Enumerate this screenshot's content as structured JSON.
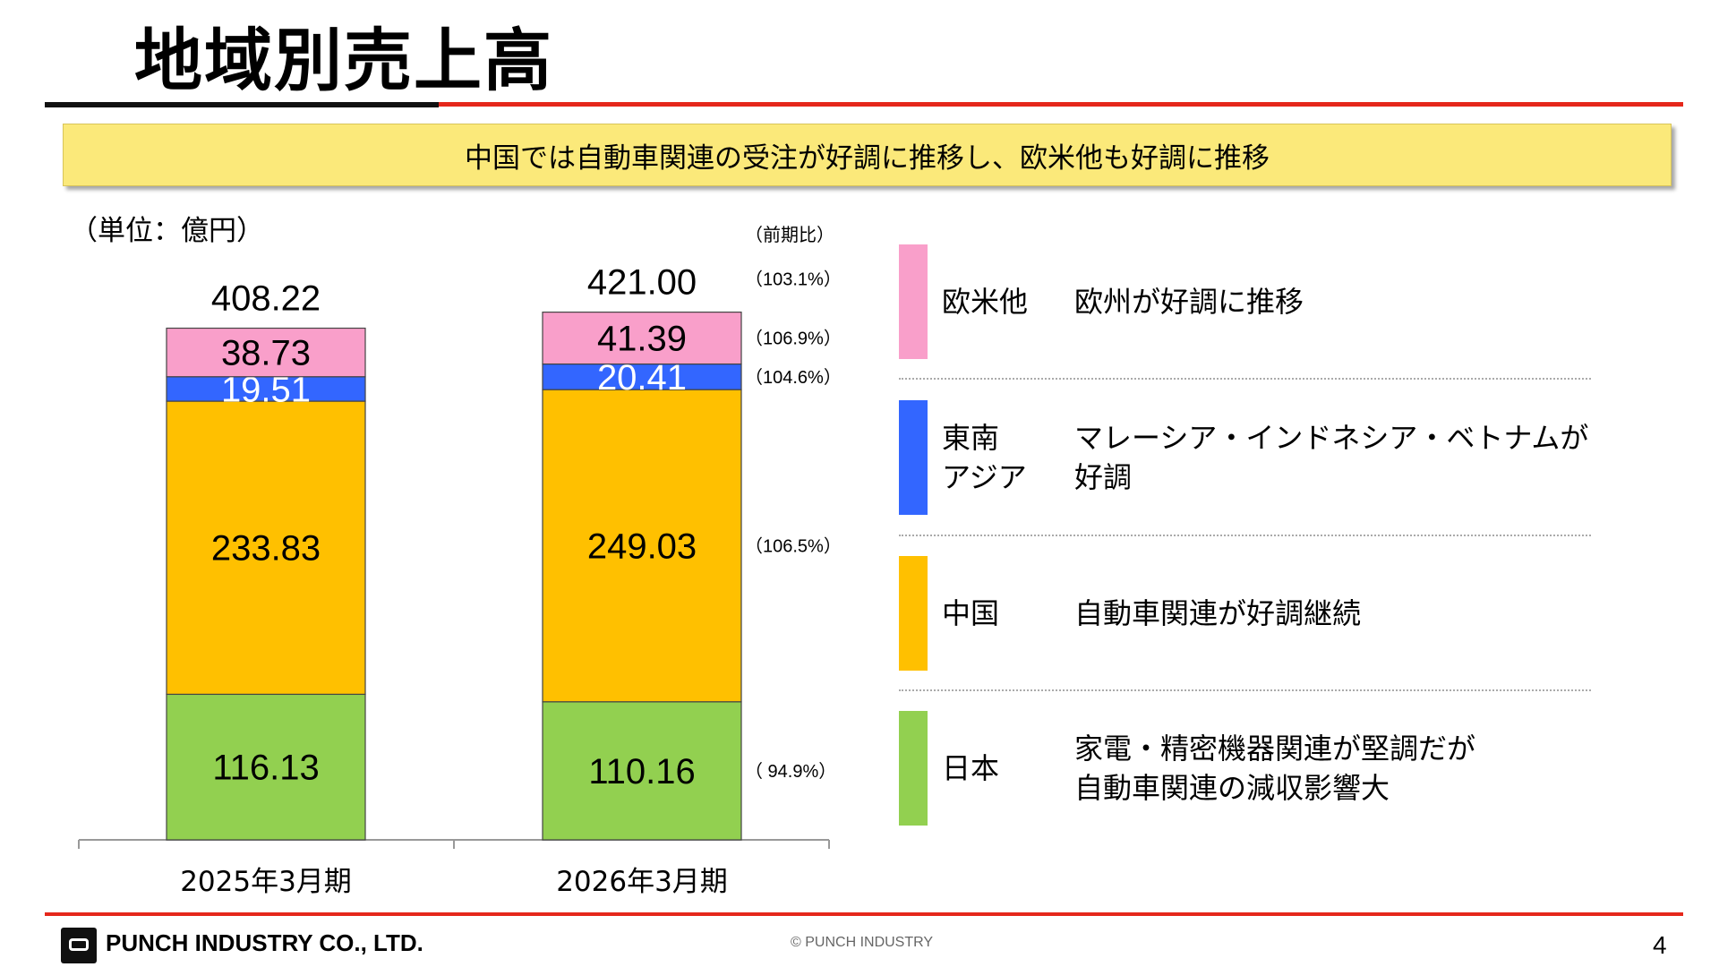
{
  "title": "地域別売上高",
  "banner": "中国では自動車関連の受注が好調に推移し、欧米他も好調に推移",
  "unit_label": "（単位：億円）",
  "yoy_header": "（前期比）",
  "chart_data": {
    "type": "bar",
    "stacked": true,
    "categories": [
      "2025年3月期",
      "2026年3月期"
    ],
    "totals": [
      "408.22",
      "421.00"
    ],
    "total_yoy": "（103.1%）",
    "series": [
      {
        "name": "日本",
        "values": [
          116.13,
          110.16
        ],
        "labels": [
          "116.13",
          "110.16"
        ],
        "yoy": "（  94.9%）",
        "color": "#92d050",
        "label_color": "#000000"
      },
      {
        "name": "中国",
        "values": [
          233.83,
          249.03
        ],
        "labels": [
          "233.83",
          "249.03"
        ],
        "yoy": "（106.5%）",
        "color": "#ffc000",
        "label_color": "#000000"
      },
      {
        "name": "東南アジア",
        "values": [
          19.51,
          20.41
        ],
        "labels": [
          "19.51",
          "20.41"
        ],
        "yoy": "（104.6%）",
        "color": "#3366ff",
        "label_color": "#ffffff"
      },
      {
        "name": "欧米他",
        "values": [
          38.73,
          41.39
        ],
        "labels": [
          "38.73",
          "41.39"
        ],
        "yoy": "（106.9%）",
        "color": "#f99fca",
        "label_color": "#000000"
      }
    ],
    "ylim": [
      0,
      430
    ],
    "grid": false,
    "legend": "right"
  },
  "legend": [
    {
      "name_lines": [
        "欧米他"
      ],
      "desc_lines": [
        "欧州が好調に推移"
      ],
      "color": "#f99fca"
    },
    {
      "name_lines": [
        "東南",
        "アジア"
      ],
      "desc_lines": [
        "マレーシア・インドネシア・ベトナムが",
        "好調"
      ],
      "color": "#3366ff"
    },
    {
      "name_lines": [
        "中国"
      ],
      "desc_lines": [
        "自動車関連が好調継続"
      ],
      "color": "#ffc000"
    },
    {
      "name_lines": [
        "日本"
      ],
      "desc_lines": [
        "家電・精密機器関連が堅調だが",
        "自動車関連の減収影響大"
      ],
      "color": "#92d050"
    }
  ],
  "footer": {
    "company": "PUNCH INDUSTRY CO., LTD.",
    "copyright": "© PUNCH INDUSTRY",
    "page": "4",
    "logo_icon": "punch-fist-logo-icon"
  }
}
